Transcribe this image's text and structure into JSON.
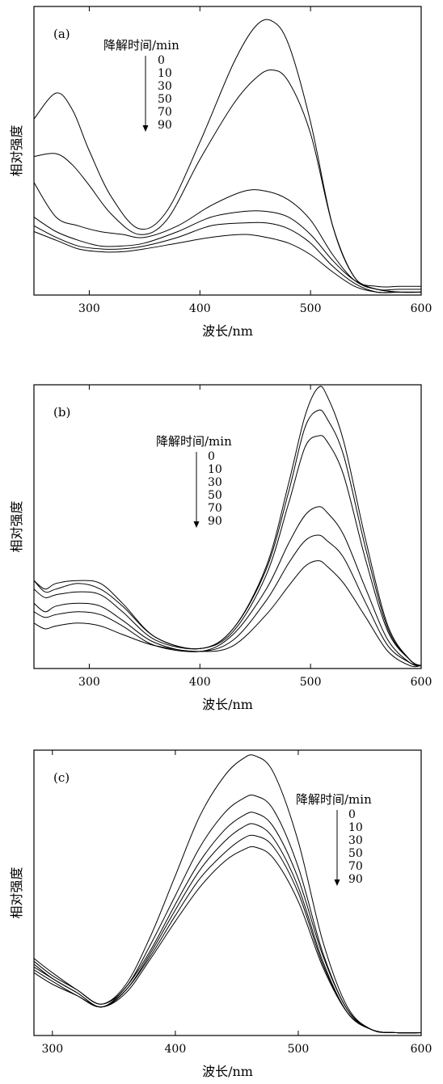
{
  "chart_data": [
    {
      "type": "line",
      "panel_label": "(a)",
      "xlabel": "波长/nm",
      "ylabel": "相对强度",
      "xlim": [
        250,
        600
      ],
      "ylim": [
        0,
        1
      ],
      "xticks": [
        300,
        400,
        500,
        600
      ],
      "legend": {
        "title": "降解时间/min",
        "entries": [
          "0",
          "10",
          "30",
          "50",
          "70",
          "90"
        ]
      },
      "series": [
        {
          "name": "0",
          "x": [
            250,
            270,
            285,
            300,
            320,
            345,
            370,
            400,
            430,
            450,
            465,
            480,
            500,
            520,
            540,
            560,
            580,
            600
          ],
          "y": [
            0.61,
            0.7,
            0.64,
            0.5,
            0.34,
            0.23,
            0.29,
            0.53,
            0.8,
            0.93,
            0.95,
            0.87,
            0.6,
            0.24,
            0.06,
            0.03,
            0.03,
            0.03
          ]
        },
        {
          "name": "10",
          "x": [
            250,
            270,
            285,
            300,
            320,
            345,
            370,
            400,
            430,
            450,
            465,
            480,
            500,
            520,
            540,
            560,
            580,
            600
          ],
          "y": [
            0.48,
            0.49,
            0.45,
            0.38,
            0.28,
            0.21,
            0.26,
            0.47,
            0.66,
            0.75,
            0.78,
            0.74,
            0.56,
            0.24,
            0.06,
            0.02,
            0.02,
            0.02
          ]
        },
        {
          "name": "30",
          "x": [
            250,
            270,
            290,
            310,
            330,
            350,
            380,
            410,
            440,
            460,
            480,
            500,
            520,
            540,
            560,
            580,
            600
          ],
          "y": [
            0.39,
            0.27,
            0.24,
            0.22,
            0.21,
            0.2,
            0.24,
            0.31,
            0.36,
            0.36,
            0.33,
            0.26,
            0.14,
            0.05,
            0.02,
            0.01,
            0.01
          ]
        },
        {
          "name": "50",
          "x": [
            250,
            270,
            290,
            310,
            330,
            350,
            380,
            410,
            440,
            460,
            480,
            500,
            520,
            540,
            560,
            580,
            600
          ],
          "y": [
            0.27,
            0.22,
            0.19,
            0.17,
            0.17,
            0.18,
            0.22,
            0.27,
            0.29,
            0.29,
            0.27,
            0.21,
            0.12,
            0.05,
            0.02,
            0.01,
            0.01
          ]
        },
        {
          "name": "70",
          "x": [
            250,
            270,
            290,
            310,
            330,
            350,
            380,
            410,
            440,
            460,
            480,
            500,
            520,
            540,
            560,
            580,
            600
          ],
          "y": [
            0.24,
            0.2,
            0.17,
            0.16,
            0.16,
            0.17,
            0.2,
            0.24,
            0.25,
            0.25,
            0.23,
            0.18,
            0.1,
            0.04,
            0.01,
            0.01,
            0.01
          ]
        },
        {
          "name": "90",
          "x": [
            250,
            270,
            290,
            310,
            330,
            350,
            380,
            410,
            440,
            460,
            480,
            500,
            520,
            540,
            560,
            580,
            600
          ],
          "y": [
            0.22,
            0.19,
            0.16,
            0.15,
            0.15,
            0.16,
            0.18,
            0.2,
            0.21,
            0.2,
            0.18,
            0.14,
            0.08,
            0.03,
            0.01,
            0.01,
            0.01
          ]
        }
      ]
    },
    {
      "type": "line",
      "panel_label": "(b)",
      "xlabel": "波长/nm",
      "ylabel": "相对强度",
      "xlim": [
        250,
        600
      ],
      "ylim": [
        0,
        1
      ],
      "xticks": [
        300,
        400,
        500,
        600
      ],
      "legend": {
        "title": "降解时间/min",
        "entries": [
          "0",
          "10",
          "30",
          "50",
          "70",
          "90"
        ]
      },
      "series": [
        {
          "name": "0",
          "x": [
            250,
            260,
            270,
            290,
            310,
            330,
            360,
            400,
            430,
            460,
            480,
            495,
            507,
            515,
            530,
            550,
            570,
            590,
            600
          ],
          "y": [
            0.31,
            0.28,
            0.3,
            0.31,
            0.3,
            0.23,
            0.11,
            0.07,
            0.14,
            0.36,
            0.65,
            0.89,
            0.99,
            0.96,
            0.8,
            0.45,
            0.15,
            0.03,
            0.01
          ]
        },
        {
          "name": "10",
          "x": [
            250,
            260,
            270,
            290,
            310,
            330,
            360,
            400,
            430,
            460,
            480,
            495,
            507,
            515,
            530,
            550,
            570,
            590,
            600
          ],
          "y": [
            0.31,
            0.27,
            0.28,
            0.3,
            0.28,
            0.22,
            0.11,
            0.07,
            0.14,
            0.35,
            0.62,
            0.85,
            0.91,
            0.88,
            0.75,
            0.42,
            0.14,
            0.03,
            0.01
          ]
        },
        {
          "name": "30",
          "x": [
            250,
            260,
            270,
            290,
            310,
            330,
            360,
            400,
            430,
            460,
            480,
            495,
            507,
            515,
            530,
            550,
            570,
            590,
            600
          ],
          "y": [
            0.28,
            0.25,
            0.26,
            0.27,
            0.26,
            0.2,
            0.1,
            0.07,
            0.13,
            0.33,
            0.58,
            0.78,
            0.82,
            0.8,
            0.68,
            0.38,
            0.13,
            0.03,
            0.01
          ]
        },
        {
          "name": "50",
          "x": [
            250,
            260,
            270,
            290,
            310,
            330,
            360,
            400,
            430,
            460,
            480,
            495,
            507,
            515,
            530,
            550,
            570,
            590,
            600
          ],
          "y": [
            0.23,
            0.2,
            0.22,
            0.23,
            0.22,
            0.17,
            0.09,
            0.06,
            0.12,
            0.28,
            0.44,
            0.54,
            0.57,
            0.55,
            0.47,
            0.28,
            0.1,
            0.02,
            0.01
          ]
        },
        {
          "name": "70",
          "x": [
            250,
            260,
            270,
            290,
            310,
            330,
            360,
            400,
            430,
            460,
            480,
            495,
            507,
            515,
            530,
            550,
            570,
            590,
            600
          ],
          "y": [
            0.2,
            0.18,
            0.19,
            0.2,
            0.19,
            0.15,
            0.08,
            0.06,
            0.1,
            0.24,
            0.37,
            0.45,
            0.47,
            0.45,
            0.39,
            0.23,
            0.08,
            0.02,
            0.01
          ]
        },
        {
          "name": "90",
          "x": [
            250,
            260,
            270,
            290,
            310,
            330,
            360,
            400,
            430,
            460,
            480,
            495,
            507,
            515,
            530,
            550,
            570,
            590,
            600
          ],
          "y": [
            0.16,
            0.14,
            0.15,
            0.16,
            0.15,
            0.12,
            0.08,
            0.06,
            0.08,
            0.19,
            0.29,
            0.36,
            0.38,
            0.36,
            0.3,
            0.18,
            0.06,
            0.01,
            0.01
          ]
        }
      ]
    },
    {
      "type": "line",
      "panel_label": "(c)",
      "xlabel": "波长/nm",
      "ylabel": "相对强度",
      "xlim": [
        285,
        600
      ],
      "ylim": [
        0,
        1
      ],
      "xticks": [
        300,
        400,
        500,
        600
      ],
      "legend": {
        "title": "降解时间/min",
        "entries": [
          "0",
          "10",
          "30",
          "50",
          "70",
          "90"
        ]
      },
      "series": [
        {
          "name": "0",
          "x": [
            285,
            300,
            320,
            340,
            360,
            380,
            400,
            420,
            440,
            455,
            465,
            480,
            500,
            520,
            540,
            560,
            580,
            600
          ],
          "y": [
            0.27,
            0.22,
            0.16,
            0.11,
            0.18,
            0.35,
            0.56,
            0.77,
            0.91,
            0.97,
            0.98,
            0.92,
            0.68,
            0.33,
            0.1,
            0.02,
            0.01,
            0.01
          ]
        },
        {
          "name": "10",
          "x": [
            285,
            300,
            320,
            340,
            360,
            380,
            400,
            420,
            440,
            455,
            465,
            480,
            500,
            520,
            540,
            560,
            580,
            600
          ],
          "y": [
            0.26,
            0.21,
            0.16,
            0.11,
            0.17,
            0.32,
            0.49,
            0.66,
            0.78,
            0.83,
            0.84,
            0.79,
            0.59,
            0.29,
            0.09,
            0.02,
            0.01,
            0.01
          ]
        },
        {
          "name": "30",
          "x": [
            285,
            300,
            320,
            340,
            360,
            380,
            400,
            420,
            440,
            455,
            465,
            480,
            500,
            520,
            540,
            560,
            580,
            600
          ],
          "y": [
            0.25,
            0.2,
            0.15,
            0.1,
            0.17,
            0.3,
            0.46,
            0.61,
            0.72,
            0.77,
            0.78,
            0.73,
            0.55,
            0.28,
            0.09,
            0.02,
            0.01,
            0.01
          ]
        },
        {
          "name": "50",
          "x": [
            285,
            300,
            320,
            340,
            360,
            380,
            400,
            420,
            440,
            455,
            465,
            480,
            500,
            520,
            540,
            560,
            580,
            600
          ],
          "y": [
            0.24,
            0.2,
            0.15,
            0.1,
            0.16,
            0.29,
            0.44,
            0.58,
            0.68,
            0.73,
            0.74,
            0.69,
            0.52,
            0.26,
            0.08,
            0.02,
            0.01,
            0.01
          ]
        },
        {
          "name": "70",
          "x": [
            285,
            300,
            320,
            340,
            360,
            380,
            400,
            420,
            440,
            455,
            465,
            480,
            500,
            520,
            540,
            560,
            580,
            600
          ],
          "y": [
            0.23,
            0.19,
            0.14,
            0.1,
            0.16,
            0.28,
            0.42,
            0.55,
            0.64,
            0.69,
            0.7,
            0.66,
            0.5,
            0.25,
            0.08,
            0.02,
            0.01,
            0.01
          ]
        },
        {
          "name": "90",
          "x": [
            285,
            300,
            320,
            340,
            360,
            380,
            400,
            420,
            440,
            455,
            465,
            480,
            500,
            520,
            540,
            560,
            580,
            600
          ],
          "y": [
            0.22,
            0.18,
            0.14,
            0.1,
            0.15,
            0.27,
            0.4,
            0.52,
            0.61,
            0.65,
            0.66,
            0.62,
            0.47,
            0.24,
            0.08,
            0.02,
            0.01,
            0.01
          ]
        }
      ]
    }
  ]
}
